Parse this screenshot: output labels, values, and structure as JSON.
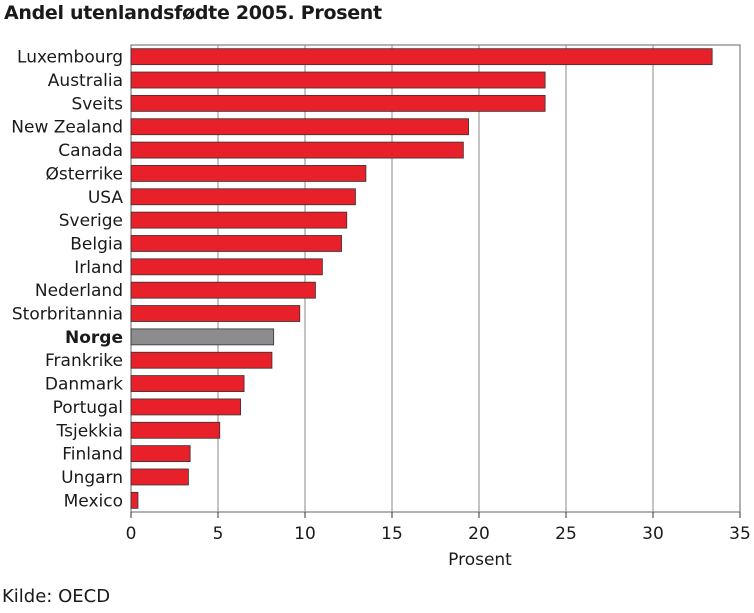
{
  "chart_data": {
    "type": "bar",
    "orientation": "horizontal",
    "title": "Andel utenlandsfødte 2005. Prosent",
    "xlabel": "Prosent",
    "source": "Kilde: OECD",
    "xlim": [
      0,
      35
    ],
    "xticks": [
      0,
      5,
      10,
      15,
      20,
      25,
      30,
      35
    ],
    "grid": true,
    "highlight": "Norge",
    "colors": {
      "bar": "#e8202a",
      "highlight": "#8c8c8e",
      "outline": "#333333"
    },
    "categories": [
      "Luxembourg",
      "Australia",
      "Sveits",
      "New Zealand",
      "Canada",
      "Østerrike",
      "USA",
      "Sverige",
      "Belgia",
      "Irland",
      "Nederland",
      "Storbritannia",
      "Norge",
      "Frankrike",
      "Danmark",
      "Portugal",
      "Tsjekkia",
      "Finland",
      "Ungarn",
      "Mexico"
    ],
    "values": [
      33.4,
      23.8,
      23.8,
      19.4,
      19.1,
      13.5,
      12.9,
      12.4,
      12.1,
      11.0,
      10.6,
      9.7,
      8.2,
      8.1,
      6.5,
      6.3,
      5.1,
      3.4,
      3.3,
      0.4
    ]
  }
}
